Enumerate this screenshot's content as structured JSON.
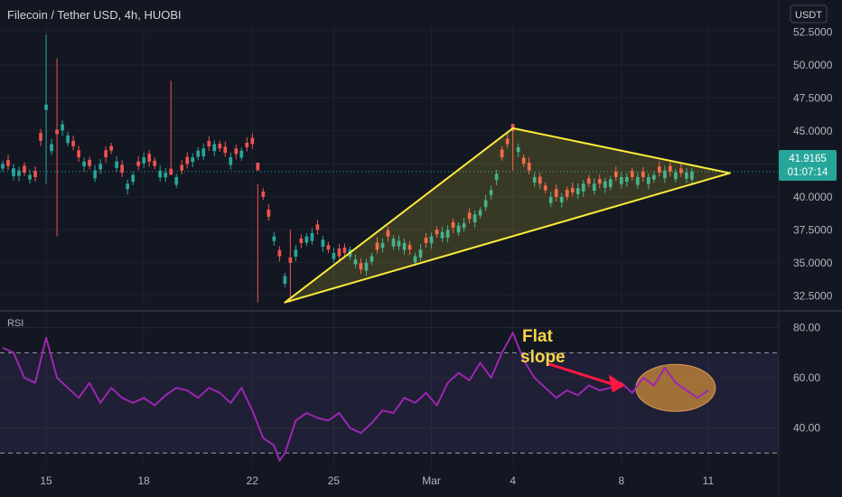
{
  "header": {
    "symbol_title": "Filecoin / Tether USD, 4h, HUOBI",
    "currency": "USDT"
  },
  "price_tag": {
    "price": "41.9165",
    "countdown": "01:07:14"
  },
  "annotation": {
    "line1": "Flat",
    "line2": "slope"
  },
  "colors": {
    "background": "#131722",
    "bull": "#26a69a",
    "bear": "#ef5350",
    "rsi_line": "#9c27b0",
    "rsi_band": "rgba(126,87,194,0.12)",
    "triangle": "#ffeb3b",
    "price_tag": "#26a69a",
    "arrow": "#ff1744",
    "ellipse": "#c6873a",
    "annotation_text": "#f5d547"
  },
  "chart_data": [
    {
      "type": "candlestick",
      "title": "Filecoin / Tether USD, 4h, HUOBI",
      "ylim": [
        31.5,
        53.0
      ],
      "y_ticks": [
        "52.5000",
        "50.0000",
        "47.5000",
        "45.0000",
        "42.5000",
        "40.0000",
        "37.5000",
        "35.0000",
        "32.5000"
      ],
      "y_tick_values": [
        52.5,
        50.0,
        47.5,
        45.0,
        42.5,
        40.0,
        37.5,
        35.0,
        32.5
      ],
      "x_ticks": [
        "15",
        "18",
        "22",
        "25",
        "Mar",
        "4",
        "8",
        "11"
      ],
      "x_tick_index": [
        8,
        26,
        46,
        61,
        79,
        94,
        114,
        130
      ],
      "x_range": [
        -0.5,
        143
      ],
      "last_price": 41.9165,
      "candle_seed": [
        1,
        -1,
        1,
        1,
        -1,
        1,
        -1,
        -1,
        1,
        1,
        -1,
        1,
        1,
        -1,
        -1,
        1,
        -1,
        1,
        1,
        -1,
        -1,
        1,
        -1,
        1,
        1,
        -1,
        1,
        -1,
        -1,
        1,
        1,
        -1,
        1,
        -1,
        -1,
        1,
        1,
        1,
        -1,
        1,
        -1,
        -1,
        1,
        -1,
        1,
        -1,
        -1,
        -1,
        -1,
        -1,
        1,
        -1,
        1,
        -1,
        1,
        -1,
        1,
        1,
        -1,
        1,
        -1,
        1,
        -1,
        -1,
        1,
        1,
        -1,
        1,
        1,
        -1,
        1,
        -1,
        1,
        1,
        1,
        -1,
        1,
        1,
        -1,
        1,
        -1,
        1,
        1,
        -1,
        1,
        1,
        -1,
        1,
        1,
        1,
        1,
        1,
        -1,
        -1,
        -1,
        1,
        -1,
        -1,
        1,
        -1,
        -1,
        1,
        -1,
        1,
        -1,
        -1,
        1,
        1,
        -1,
        1,
        -1,
        1,
        1,
        -1,
        1,
        1,
        -1,
        1,
        -1,
        1,
        1,
        -1,
        1,
        -1,
        1,
        -1,
        1,
        1,
        -1,
        1,
        -1,
        1,
        1,
        -1,
        1,
        1
      ],
      "close_path": [
        [
          0,
          42.5
        ],
        [
          6,
          41.5
        ],
        [
          8,
          47.0
        ],
        [
          9,
          44.0
        ],
        [
          11,
          45.5
        ],
        [
          14,
          43.0
        ],
        [
          17,
          42.0
        ],
        [
          20,
          43.5
        ],
        [
          23,
          41.0
        ],
        [
          26,
          43.0
        ],
        [
          29,
          42.0
        ],
        [
          32,
          41.5
        ],
        [
          36,
          43.5
        ],
        [
          39,
          44.0
        ],
        [
          42,
          43.0
        ],
        [
          46,
          44.0
        ],
        [
          48,
          40.0
        ],
        [
          50,
          37.0
        ],
        [
          52,
          34.0
        ],
        [
          54,
          36.0
        ],
        [
          56,
          37.0
        ],
        [
          58,
          37.5
        ],
        [
          60,
          36.0
        ],
        [
          62,
          35.5
        ],
        [
          64,
          36.0
        ],
        [
          66,
          34.5
        ],
        [
          68,
          35.5
        ],
        [
          71,
          37.0
        ],
        [
          74,
          36.5
        ],
        [
          76,
          35.5
        ],
        [
          79,
          37.0
        ],
        [
          82,
          37.5
        ],
        [
          85,
          38.0
        ],
        [
          88,
          39.0
        ],
        [
          90,
          40.5
        ],
        [
          92,
          43.0
        ],
        [
          94,
          45.0
        ],
        [
          96,
          42.5
        ],
        [
          99,
          41.0
        ],
        [
          101,
          40.0
        ],
        [
          104,
          40.0
        ],
        [
          107,
          41.0
        ],
        [
          110,
          41.0
        ],
        [
          113,
          41.5
        ],
        [
          116,
          41.5
        ],
        [
          119,
          41.5
        ],
        [
          122,
          42.0
        ],
        [
          125,
          41.8
        ],
        [
          127,
          41.9
        ]
      ],
      "spikes": [
        {
          "index": 8,
          "high": 52.3,
          "low": 41.0
        },
        {
          "index": 10,
          "high": 50.5,
          "low": 37.0
        },
        {
          "index": 31,
          "high": 48.8,
          "low": 42.0
        },
        {
          "index": 47,
          "high": 41.0,
          "low": 32.0
        },
        {
          "index": 53,
          "high": 37.5,
          "low": 32.0
        },
        {
          "index": 94,
          "high": 45.2,
          "low": 42.0
        }
      ],
      "triangle": [
        [
          52,
          32.0
        ],
        [
          94,
          45.2
        ],
        [
          134,
          41.8
        ]
      ]
    },
    {
      "type": "line",
      "name": "RSI",
      "ylim": [
        24,
        86
      ],
      "y_ticks": [
        "80.00",
        "60.00",
        "40.00"
      ],
      "y_tick_values": [
        80,
        60,
        40
      ],
      "band": [
        30,
        70
      ],
      "points": [
        [
          0,
          72
        ],
        [
          2,
          70
        ],
        [
          4,
          60
        ],
        [
          6,
          58
        ],
        [
          8,
          76
        ],
        [
          10,
          60
        ],
        [
          12,
          56
        ],
        [
          14,
          52
        ],
        [
          16,
          58
        ],
        [
          18,
          50
        ],
        [
          20,
          56
        ],
        [
          22,
          52
        ],
        [
          24,
          50
        ],
        [
          26,
          52
        ],
        [
          28,
          49
        ],
        [
          30,
          53
        ],
        [
          32,
          56
        ],
        [
          34,
          55
        ],
        [
          36,
          52
        ],
        [
          38,
          56
        ],
        [
          40,
          54
        ],
        [
          42,
          50
        ],
        [
          44,
          56
        ],
        [
          46,
          47
        ],
        [
          48,
          36
        ],
        [
          50,
          33
        ],
        [
          51,
          27
        ],
        [
          52,
          30
        ],
        [
          54,
          43
        ],
        [
          56,
          46
        ],
        [
          58,
          44
        ],
        [
          60,
          43
        ],
        [
          62,
          46
        ],
        [
          64,
          40
        ],
        [
          66,
          38
        ],
        [
          68,
          42
        ],
        [
          70,
          47
        ],
        [
          72,
          46
        ],
        [
          74,
          52
        ],
        [
          76,
          50
        ],
        [
          78,
          54
        ],
        [
          80,
          49
        ],
        [
          82,
          58
        ],
        [
          84,
          62
        ],
        [
          86,
          59
        ],
        [
          88,
          66
        ],
        [
          90,
          60
        ],
        [
          92,
          70
        ],
        [
          94,
          78
        ],
        [
          96,
          67
        ],
        [
          98,
          60
        ],
        [
          100,
          56
        ],
        [
          102,
          52
        ],
        [
          104,
          55
        ],
        [
          106,
          53
        ],
        [
          108,
          57
        ],
        [
          110,
          55
        ],
        [
          112,
          56
        ],
        [
          114,
          58
        ],
        [
          116,
          54
        ],
        [
          118,
          60
        ],
        [
          120,
          57
        ],
        [
          122,
          64
        ],
        [
          124,
          58
        ],
        [
          126,
          55
        ],
        [
          128,
          52
        ],
        [
          130,
          55
        ]
      ]
    }
  ]
}
